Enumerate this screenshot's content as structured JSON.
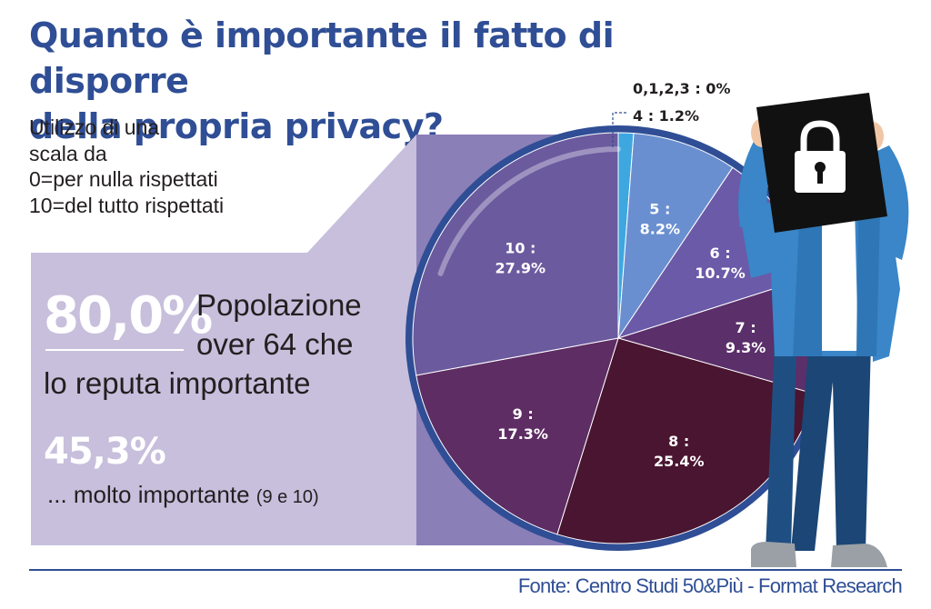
{
  "title_line1": "Quanto è importante il fatto di disporre",
  "title_line2": "della propria privacy?",
  "scale_note": {
    "line1": "Utilizzo di una",
    "line2": "scala da",
    "line3": "0=per nulla rispettati",
    "line4": "10=del tutto rispettati"
  },
  "highlight1": {
    "value": "80,0%",
    "line1": "Popolazione",
    "line2": "over 64 che",
    "line3": "lo reputa importante"
  },
  "highlight2": {
    "value": "45,3%",
    "text": "... molto importante",
    "note": "(9 e 10)"
  },
  "source": "Fonte: Centro Studi 50&Più - Format Research",
  "colors": {
    "title": "#2f4e95",
    "panel": "#c7bfdc",
    "slice_4": "#3ea7e0",
    "slice_5": "#6a8fd0",
    "slice_6": "#6a5aa8",
    "slice_7": "#5a2f6a",
    "slice_8": "#4a1530",
    "slice_9": "#5e2d64",
    "slice_10": "#6b5a9e",
    "rim": "#2f4e95"
  },
  "icons": [
    "lock-icon"
  ],
  "chart_data": {
    "type": "pie",
    "slices": [
      {
        "label": "0,1,2,3",
        "value": 0.0,
        "text": "0%",
        "key": "slice_0123"
      },
      {
        "label": "4",
        "value": 1.2,
        "text": "1.2%",
        "key": "slice_4"
      },
      {
        "label": "5",
        "value": 8.2,
        "text": "8.2%",
        "key": "slice_5"
      },
      {
        "label": "6",
        "value": 10.7,
        "text": "10.7%",
        "key": "slice_6"
      },
      {
        "label": "7",
        "value": 9.3,
        "text": "9.3%",
        "key": "slice_7"
      },
      {
        "label": "8",
        "value": 25.4,
        "text": "25.4%",
        "key": "slice_8"
      },
      {
        "label": "9",
        "value": 17.3,
        "text": "17.3%",
        "key": "slice_9"
      },
      {
        "label": "10",
        "value": 27.9,
        "text": "27.9%",
        "key": "slice_10"
      }
    ],
    "label_format": "{label} : {text}"
  }
}
